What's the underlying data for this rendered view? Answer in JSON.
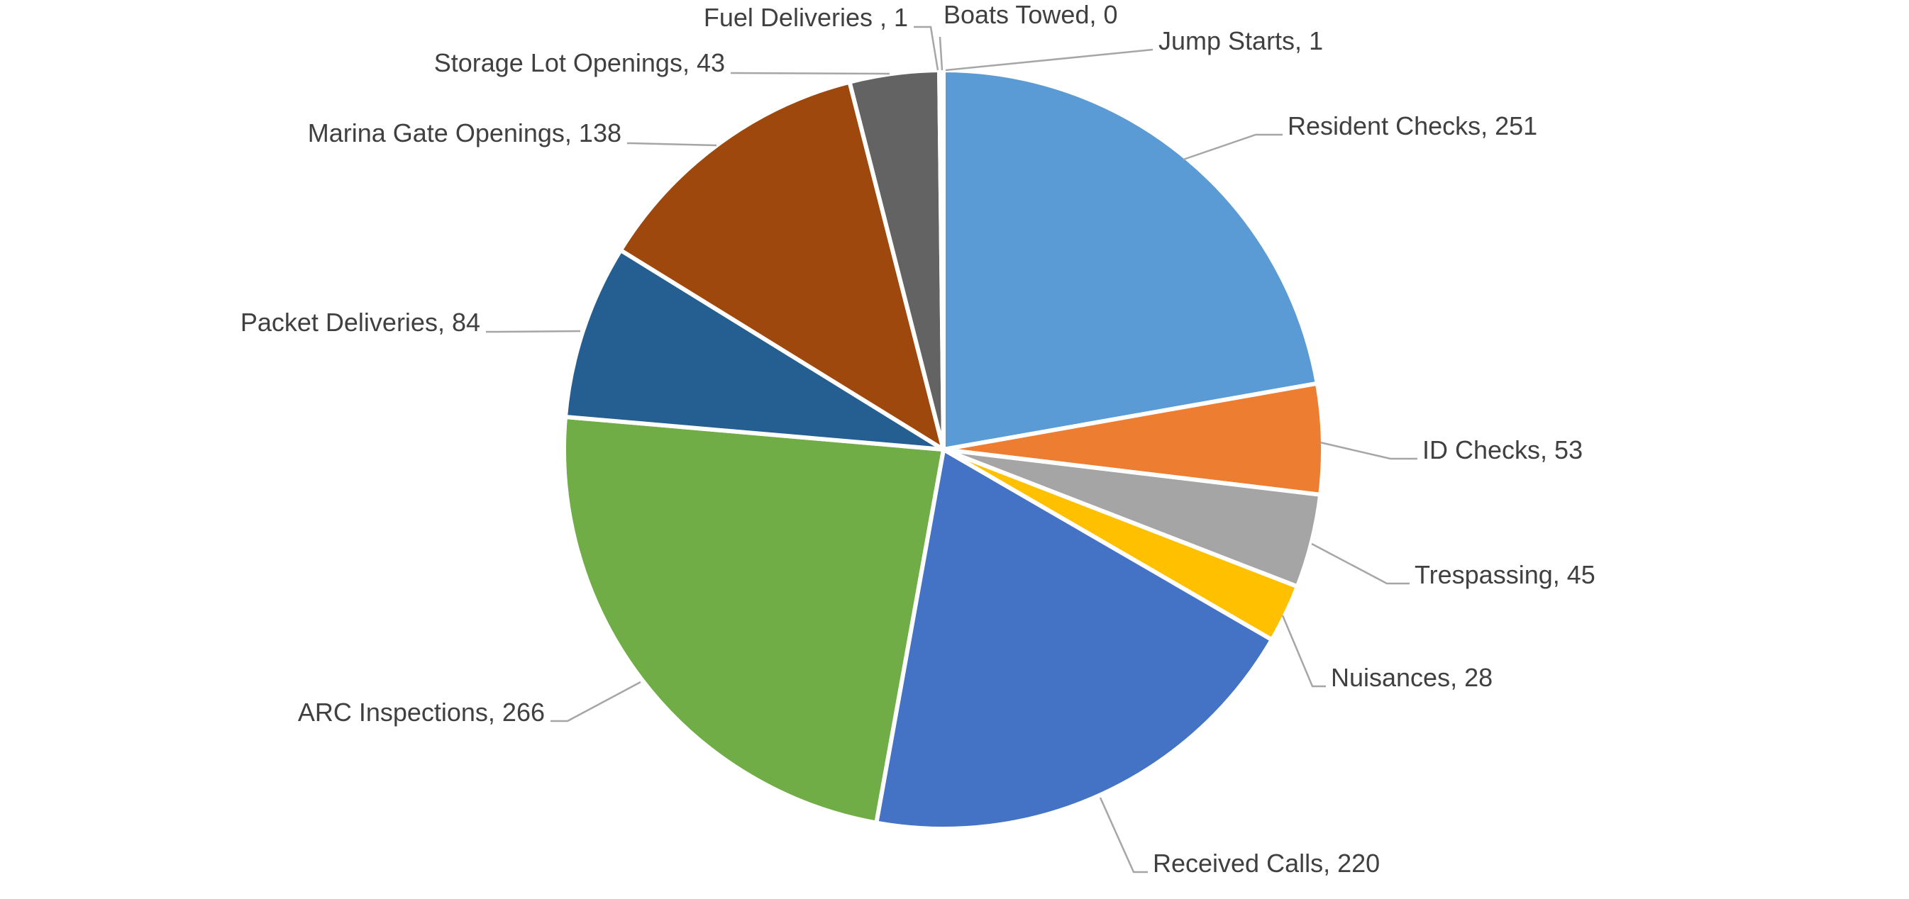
{
  "chart_data": {
    "type": "pie",
    "title": "",
    "categories": [
      "Resident Checks",
      "ID Checks",
      "Trespassing",
      "Nuisances",
      "Received Calls",
      "ARC Inspections",
      "Packet Deliveries",
      "Marina Gate Openings",
      "Storage Lot Openings",
      "Fuel Deliveries ",
      "Boats Towed",
      "Jump Starts"
    ],
    "values": [
      251,
      53,
      45,
      28,
      220,
      266,
      84,
      138,
      43,
      1,
      0,
      1
    ],
    "labels": [
      "Resident Checks, 251",
      "ID Checks, 53",
      "Trespassing, 45",
      "Nuisances, 28",
      "Received Calls, 220",
      "ARC Inspections, 266",
      "Packet Deliveries, 84",
      "Marina Gate Openings, 138",
      "Storage Lot Openings, 43",
      "Fuel Deliveries , 1",
      "Boats Towed, 0",
      "Jump Starts, 1"
    ],
    "colors": [
      "#5B9BD5",
      "#ED7D31",
      "#A5A5A5",
      "#FFC000",
      "#4472C4",
      "#70AD47",
      "#255E91",
      "#9E480E",
      "#636363",
      "#997300",
      "#264478",
      "#43682B"
    ],
    "legend": "none",
    "data_labels": "outside-with-leader-lines"
  }
}
